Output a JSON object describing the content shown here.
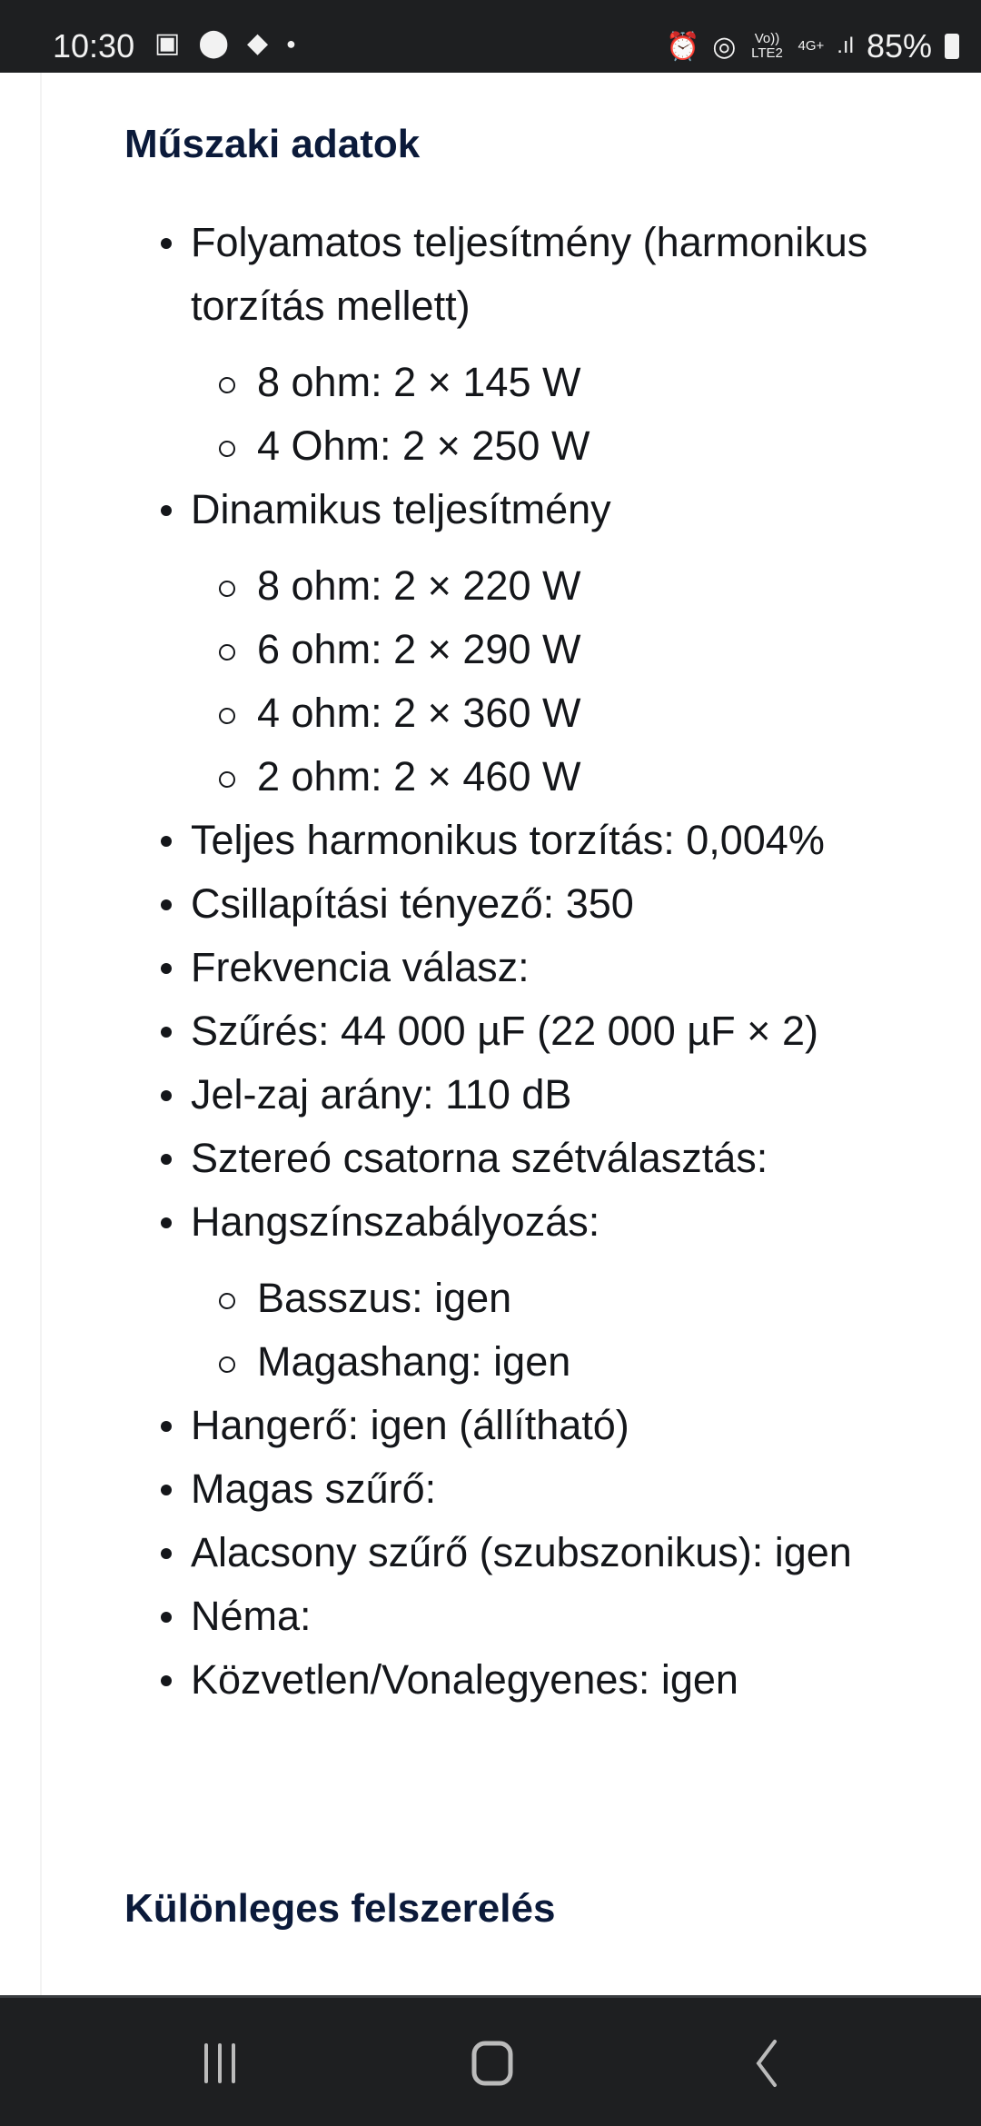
{
  "status_bar": {
    "time": "10:30",
    "battery": "85%",
    "network": "4G+",
    "volte": "Vo)) LTE2"
  },
  "sections": [
    {
      "title": "Műszaki adatok"
    },
    {
      "title": "Különleges felszerelés"
    }
  ],
  "specs": [
    {
      "text": "Folyamatos teljesítmény (harmonikus torzítás mellett)",
      "sub": [
        "8 ohm: 2 × 145 W",
        "4 Ohm: 2 × 250 W"
      ]
    },
    {
      "text": "Dinamikus teljesítmény",
      "sub": [
        "8 ohm: 2 × 220 W",
        "6 ohm: 2 × 290 W",
        "4 ohm: 2 × 360 W",
        "2 ohm: 2 × 460 W"
      ]
    },
    {
      "text": "Teljes harmonikus torzítás: 0,004%"
    },
    {
      "text": "Csillapítási tényező: 350"
    },
    {
      "text": "Frekvencia válasz:"
    },
    {
      "text": "Szűrés: 44 000 µF (22 000 µF × 2)"
    },
    {
      "text": "Jel-zaj arány: 110 dB"
    },
    {
      "text": "Sztereó csatorna szétválasztás:"
    },
    {
      "text": "Hangszínszabályozás:",
      "sub": [
        "Basszus: igen",
        "Magashang: igen"
      ]
    },
    {
      "text": "Hangerő: igen (állítható)"
    },
    {
      "text": "Magas szűrő:"
    },
    {
      "text": "Alacsony szűrő (szubszonikus): igen"
    },
    {
      "text": "Néma:"
    },
    {
      "text": "Közvetlen/Vonalegyenes: igen"
    }
  ]
}
